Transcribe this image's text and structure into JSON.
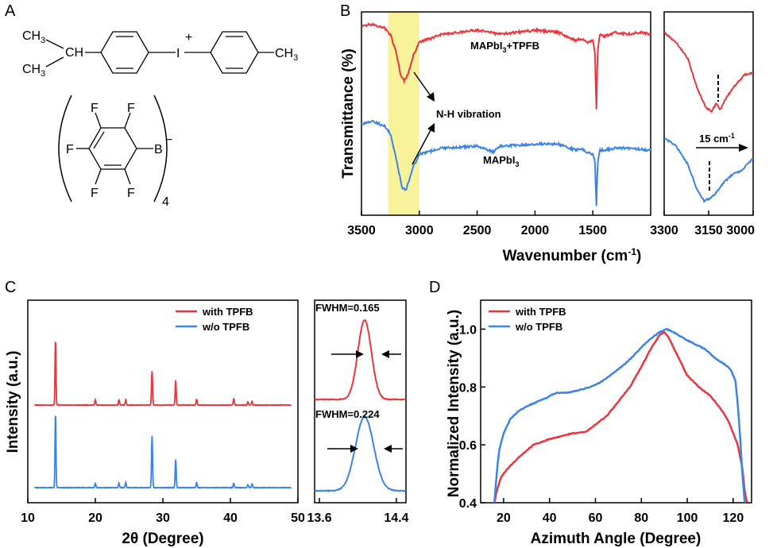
{
  "panel_letters": {
    "a": "A",
    "b": "B",
    "c": "C",
    "d": "D"
  },
  "colors": {
    "red": "#e8363c",
    "blue": "#3b84e6",
    "highlight": "#f8f39a"
  },
  "molecule": {
    "ch3_top": "CH",
    "sub3": "3",
    "ch": "CH",
    "iodine": "I",
    "plus": "+",
    "ch3_right": "CH",
    "fluorine": "F",
    "boron": "B",
    "minus": "−",
    "count": "4"
  },
  "chart_data": [
    {
      "panel": "B-main",
      "type": "line",
      "xlabel": "Wavenumber (cm",
      "xlabel_sup": "-1",
      "xlabel_end": ")",
      "ylabel": "Transmittance (%)",
      "xlim": [
        3500,
        1000
      ],
      "xticks": [
        "3500",
        "3000",
        "2500",
        "2000",
        "1500"
      ],
      "highlight_range": [
        3270,
        3000
      ],
      "annotation": "N-H vibration",
      "series": [
        {
          "name": "MAPbI",
          "name_sub": "3",
          "name_suffix": "+TPFB",
          "color": "#e8363c",
          "x": [
            3500,
            3400,
            3300,
            3250,
            3200,
            3160,
            3130,
            3100,
            3050,
            3000,
            2800,
            2500,
            2300,
            2000,
            1800,
            1650,
            1600,
            1550,
            1500,
            1480,
            1470,
            1460,
            1440,
            1400,
            1300,
            1200,
            1100,
            1000
          ],
          "y": [
            93,
            94,
            92,
            89,
            80,
            69,
            66,
            69,
            79,
            85,
            89,
            91,
            89,
            91,
            90,
            86,
            87,
            85,
            86,
            80,
            48,
            80,
            89,
            88,
            90,
            89,
            90,
            89
          ]
        },
        {
          "name": "MAPbI",
          "name_sub": "3",
          "color": "#3b84e6",
          "x": [
            3500,
            3400,
            3300,
            3250,
            3200,
            3150,
            3120,
            3100,
            3050,
            3000,
            2800,
            2500,
            2360,
            2300,
            2000,
            1800,
            1650,
            1600,
            1550,
            1500,
            1480,
            1470,
            1460,
            1440,
            1400,
            1300,
            1200,
            1000
          ],
          "y": [
            45,
            46,
            44,
            40,
            28,
            14,
            12,
            15,
            24,
            30,
            33,
            34,
            31,
            34,
            35,
            35,
            32,
            33,
            31,
            30,
            26,
            2,
            25,
            32,
            32,
            33,
            33,
            32
          ]
        }
      ]
    },
    {
      "panel": "B-inset",
      "type": "line",
      "xlim": [
        3300,
        3000
      ],
      "xticks": [
        "3300",
        "3150",
        "3000"
      ],
      "annotation": "15 cm",
      "annotation_sup": "-1",
      "series": [
        {
          "name": "MAPbI3+TPFB",
          "color": "#e8363c",
          "x": [
            3300,
            3260,
            3220,
            3190,
            3160,
            3140,
            3125,
            3110,
            3090,
            3060,
            3030,
            3000
          ],
          "y": [
            90,
            85,
            77,
            63,
            53,
            51,
            55,
            52,
            58,
            64,
            69,
            70
          ]
        },
        {
          "name": "MAPbI3",
          "color": "#3b84e6",
          "x": [
            3300,
            3260,
            3220,
            3190,
            3165,
            3150,
            3130,
            3100,
            3070,
            3040,
            3000
          ],
          "y": [
            38,
            34,
            25,
            13,
            7,
            8,
            10,
            16,
            20,
            22,
            28
          ]
        }
      ]
    },
    {
      "panel": "C-main",
      "type": "line",
      "xlabel": "2θ (Degree)",
      "ylabel": "Intensity (a.u.)",
      "xlim": [
        10,
        50
      ],
      "xticks": [
        "10",
        "20",
        "30",
        "40",
        "50"
      ],
      "legend": [
        "with TPFB",
        "w/o  TPFB"
      ],
      "peaks_x": [
        14.1,
        20.0,
        23.5,
        24.5,
        28.4,
        31.9,
        35.0,
        40.5,
        42.6,
        43.2
      ],
      "series": [
        {
          "name": "with TPFB",
          "color": "#e8363c",
          "baseline": 0,
          "peaks_y": [
            100,
            8,
            8,
            8,
            52,
            38,
            9,
            10,
            5,
            6
          ]
        },
        {
          "name": "w/o  TPFB",
          "color": "#3b84e6",
          "baseline": 0,
          "peaks_y": [
            100,
            6,
            6,
            7,
            70,
            38,
            7,
            6,
            4,
            5
          ]
        }
      ]
    },
    {
      "panel": "C-inset",
      "type": "line",
      "xlim": [
        13.55,
        14.5
      ],
      "xticks": [
        "13.6",
        "14.4"
      ],
      "series": [
        {
          "name": "with TPFB",
          "color": "#e8363c",
          "center": 14.07,
          "fwhm_label": "FWHM=0.165",
          "height": 100
        },
        {
          "name": "w/o  TPFB",
          "color": "#3b84e6",
          "center": 14.07,
          "fwhm_label": "FWHM=0.224",
          "height": 100
        }
      ]
    },
    {
      "panel": "D",
      "type": "line",
      "xlabel": "Azimuth Angle (Degree)",
      "ylabel": "Normalized Intensity (a.u.)",
      "xlim": [
        10,
        128
      ],
      "ylim": [
        0.4,
        1.1
      ],
      "xticks": [
        "20",
        "40",
        "60",
        "80",
        "100",
        "120"
      ],
      "yticks": [
        "0.4",
        "0.6",
        "0.8",
        "1.0"
      ],
      "legend": [
        "with TPFB",
        "w/o  TPFB"
      ],
      "series": [
        {
          "name": "with TPFB",
          "color": "#e8363c",
          "x": [
            16,
            17,
            19,
            22,
            27,
            33,
            40,
            45,
            50,
            56,
            60,
            65,
            70,
            75,
            80,
            84,
            88,
            90,
            92,
            95,
            100,
            105,
            110,
            115,
            118,
            120,
            122,
            124,
            125,
            126
          ],
          "y": [
            0.4,
            0.44,
            0.49,
            0.52,
            0.56,
            0.6,
            0.62,
            0.63,
            0.64,
            0.645,
            0.67,
            0.7,
            0.75,
            0.8,
            0.87,
            0.93,
            0.98,
            0.99,
            0.97,
            0.92,
            0.84,
            0.8,
            0.77,
            0.72,
            0.68,
            0.64,
            0.6,
            0.52,
            0.44,
            0.4
          ]
        },
        {
          "name": "w/o  TPFB",
          "color": "#3b84e6",
          "x": [
            16,
            17,
            18,
            20,
            23,
            27,
            32,
            38,
            43,
            48,
            53,
            58,
            63,
            68,
            73,
            78,
            83,
            88,
            91,
            94,
            98,
            103,
            108,
            112,
            116,
            119,
            121,
            122,
            123,
            124,
            125
          ],
          "y": [
            0.4,
            0.5,
            0.58,
            0.64,
            0.69,
            0.72,
            0.74,
            0.76,
            0.78,
            0.78,
            0.79,
            0.8,
            0.82,
            0.85,
            0.88,
            0.92,
            0.96,
            0.99,
            1.0,
            0.99,
            0.97,
            0.95,
            0.93,
            0.9,
            0.88,
            0.86,
            0.82,
            0.74,
            0.63,
            0.5,
            0.4
          ]
        }
      ]
    }
  ]
}
